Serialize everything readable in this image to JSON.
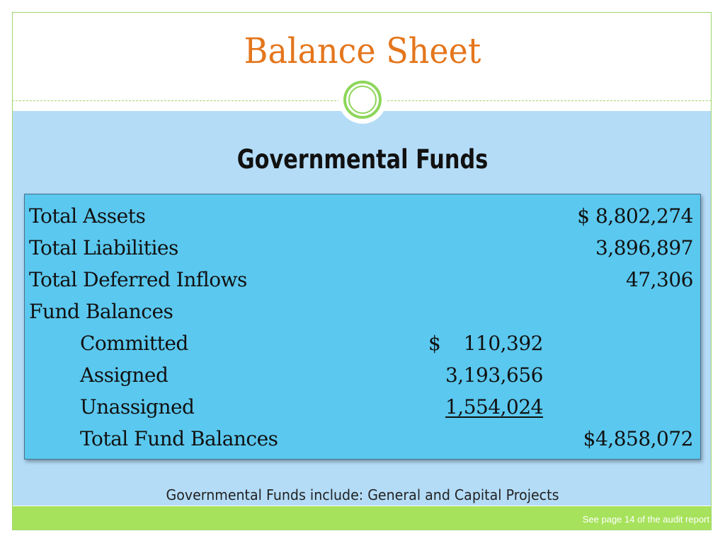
{
  "slide": {
    "title": "Balance Sheet",
    "subheading": "Governmental Funds",
    "footnote": "Governmental Funds include: General and Capital Projects",
    "credit": "See page 14 of the audit report"
  },
  "table": {
    "rows": [
      {
        "label": "Total Assets",
        "amount": "$  8,802,274"
      },
      {
        "label": "Total Liabilities",
        "amount": "3,896,897"
      },
      {
        "label": "Total Deferred Inflows",
        "amount": "47,306"
      },
      {
        "label": "Fund Balances"
      }
    ],
    "fund_balances": [
      {
        "label": "Committed",
        "dollar": "$",
        "amount": "110,392"
      },
      {
        "label": "Assigned",
        "amount": "3,193,656"
      },
      {
        "label": "Unassigned",
        "amount": "1,554,024"
      }
    ],
    "total_fund_balances": {
      "label": "Total Fund Balances",
      "amount": "$4,858,072"
    }
  },
  "colors": {
    "title": "#e4761c",
    "accent_green": "#8ed65b",
    "panel_blue": "#b4dcf7",
    "table_blue": "#5bc8ef"
  }
}
